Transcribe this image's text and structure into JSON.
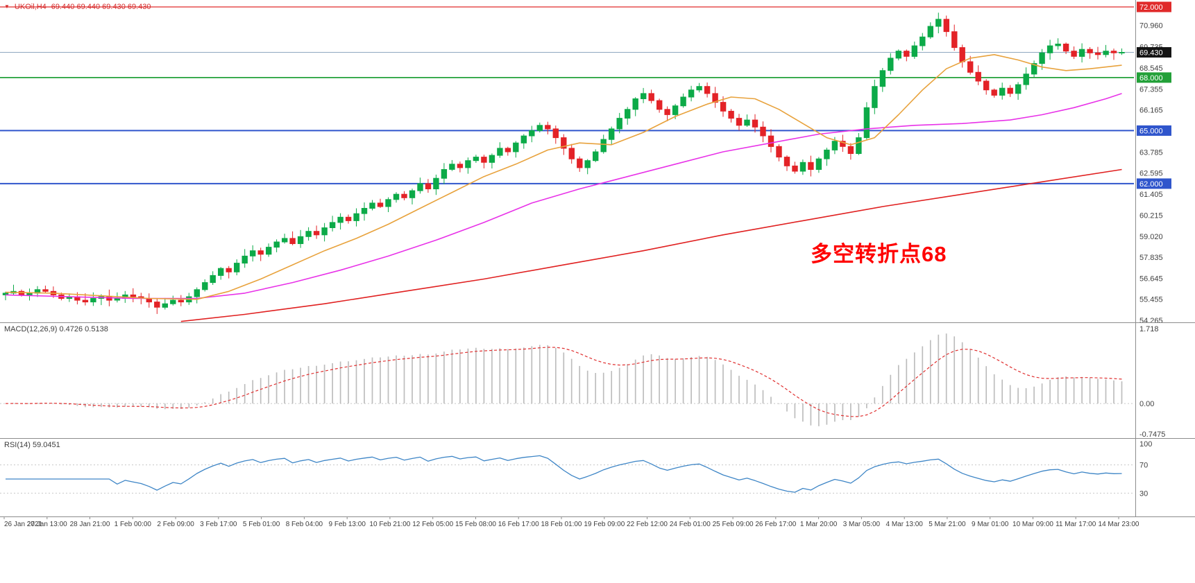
{
  "header": {
    "symbol": "UKOil,H4",
    "ohlc": "69.440 69.440 69.430 69.430"
  },
  "chart_data": {
    "type": "candlestick",
    "symbol": "UKOil",
    "timeframe": "H4",
    "price_axis": {
      "max": 72.0,
      "min": 54.265,
      "ticks": [
        "70.960",
        "69.735",
        "68.545",
        "67.355",
        "66.165",
        "63.785",
        "62.595",
        "61.405",
        "60.215",
        "59.020",
        "57.835",
        "56.645",
        "55.455",
        "54.265"
      ],
      "badges": [
        {
          "label": "72.000",
          "color": "#e02a2a",
          "name": "resistance-72-badge"
        },
        {
          "label": "69.430",
          "color": "#141414",
          "name": "current-price-badge"
        },
        {
          "label": "68.000",
          "color": "#22a038",
          "name": "level-68-badge"
        },
        {
          "label": "65.000",
          "color": "#2f55cc",
          "name": "level-65-badge"
        },
        {
          "label": "62.000",
          "color": "#2f55cc",
          "name": "level-62-badge"
        }
      ]
    },
    "hlines": [
      {
        "price": 72.0,
        "color": "#e02a2a",
        "width": 1.3,
        "name": "resistance-line-72"
      },
      {
        "price": 69.43,
        "color": "#8fa8c0",
        "width": 1,
        "name": "current-price-line"
      },
      {
        "price": 68.0,
        "color": "#22a038",
        "width": 1.7,
        "name": "support-line-68"
      },
      {
        "price": 65.0,
        "color": "#2f55cc",
        "width": 2,
        "name": "support-line-65"
      },
      {
        "price": 62.0,
        "color": "#2f55cc",
        "width": 2,
        "name": "support-line-62"
      }
    ],
    "candles": {
      "first_open": 55.7,
      "up_color": "#0caa48",
      "down_color": "#e32227",
      "closes": [
        55.8,
        55.9,
        55.7,
        55.8,
        56.0,
        55.9,
        55.7,
        55.5,
        55.6,
        55.4,
        55.3,
        55.5,
        55.6,
        55.4,
        55.5,
        55.7,
        55.6,
        55.5,
        55.3,
        55.0,
        55.2,
        55.4,
        55.3,
        55.6,
        56.0,
        56.4,
        56.8,
        57.2,
        57.0,
        57.5,
        57.9,
        58.2,
        58.0,
        58.4,
        58.7,
        58.9,
        58.6,
        59.0,
        59.3,
        59.1,
        59.5,
        59.8,
        60.1,
        59.9,
        60.3,
        60.6,
        60.9,
        60.7,
        61.1,
        61.4,
        61.2,
        61.6,
        62.0,
        61.7,
        62.3,
        62.8,
        63.1,
        62.9,
        63.3,
        63.5,
        63.2,
        63.6,
        64.0,
        63.8,
        64.3,
        64.7,
        65.0,
        65.3,
        65.1,
        64.6,
        64.0,
        63.4,
        62.9,
        63.3,
        63.8,
        64.5,
        65.1,
        65.7,
        66.2,
        66.8,
        67.1,
        66.7,
        66.2,
        65.9,
        66.4,
        66.9,
        67.3,
        67.5,
        67.1,
        66.6,
        66.1,
        65.7,
        65.3,
        65.6,
        65.2,
        64.7,
        64.1,
        63.5,
        63.0,
        62.7,
        63.2,
        62.8,
        63.4,
        63.9,
        64.4,
        64.1,
        63.7,
        64.6,
        66.3,
        67.5,
        68.4,
        69.1,
        69.5,
        69.2,
        69.8,
        70.3,
        70.9,
        71.3,
        70.6,
        69.7,
        68.9,
        68.3,
        67.8,
        67.3,
        67.0,
        67.4,
        67.1,
        67.6,
        68.2,
        68.8,
        69.4,
        69.8,
        69.9,
        69.5,
        69.2,
        69.6,
        69.4,
        69.3,
        69.5,
        69.4,
        69.43
      ]
    },
    "ma": {
      "orange": {
        "color": "#e8a23c",
        "points": [
          [
            0,
            55.85
          ],
          [
            6,
            55.8
          ],
          [
            12,
            55.65
          ],
          [
            18,
            55.5
          ],
          [
            24,
            55.45
          ],
          [
            28,
            55.9
          ],
          [
            32,
            56.6
          ],
          [
            36,
            57.4
          ],
          [
            40,
            58.2
          ],
          [
            44,
            58.9
          ],
          [
            48,
            59.7
          ],
          [
            52,
            60.6
          ],
          [
            56,
            61.5
          ],
          [
            60,
            62.4
          ],
          [
            64,
            63.1
          ],
          [
            68,
            63.9
          ],
          [
            72,
            64.3
          ],
          [
            76,
            64.2
          ],
          [
            80,
            64.9
          ],
          [
            84,
            65.8
          ],
          [
            88,
            66.5
          ],
          [
            91,
            66.9
          ],
          [
            94,
            66.8
          ],
          [
            97,
            66.2
          ],
          [
            100,
            65.4
          ],
          [
            103,
            64.6
          ],
          [
            106,
            64.2
          ],
          [
            109,
            64.6
          ],
          [
            112,
            65.9
          ],
          [
            115,
            67.3
          ],
          [
            118,
            68.5
          ],
          [
            121,
            69.1
          ],
          [
            124,
            69.3
          ],
          [
            127,
            69.0
          ],
          [
            130,
            68.6
          ],
          [
            133,
            68.4
          ],
          [
            136,
            68.5
          ],
          [
            140,
            68.7
          ]
        ]
      },
      "magenta": {
        "color": "#e832e8",
        "points": [
          [
            0,
            55.7
          ],
          [
            8,
            55.6
          ],
          [
            16,
            55.5
          ],
          [
            24,
            55.5
          ],
          [
            30,
            55.8
          ],
          [
            36,
            56.4
          ],
          [
            42,
            57.1
          ],
          [
            48,
            57.9
          ],
          [
            54,
            58.8
          ],
          [
            60,
            59.8
          ],
          [
            66,
            60.9
          ],
          [
            72,
            61.7
          ],
          [
            78,
            62.4
          ],
          [
            84,
            63.1
          ],
          [
            90,
            63.8
          ],
          [
            96,
            64.3
          ],
          [
            102,
            64.8
          ],
          [
            108,
            65.1
          ],
          [
            114,
            65.3
          ],
          [
            120,
            65.4
          ],
          [
            126,
            65.6
          ],
          [
            130,
            65.9
          ],
          [
            134,
            66.3
          ],
          [
            138,
            66.8
          ],
          [
            140,
            67.1
          ]
        ]
      },
      "red": {
        "color": "#e02020",
        "points": [
          [
            22,
            54.2
          ],
          [
            30,
            54.6
          ],
          [
            40,
            55.2
          ],
          [
            50,
            55.9
          ],
          [
            60,
            56.6
          ],
          [
            70,
            57.4
          ],
          [
            80,
            58.2
          ],
          [
            90,
            59.1
          ],
          [
            100,
            59.9
          ],
          [
            110,
            60.7
          ],
          [
            120,
            61.4
          ],
          [
            130,
            62.1
          ],
          [
            140,
            62.8
          ]
        ]
      }
    },
    "macd": {
      "label": "MACD(12,26,9) 0.4726 0.5138",
      "fast": 12,
      "slow": 26,
      "signal_period": 9,
      "main_value": 0.4726,
      "signal_value": 0.5138,
      "axis_top": "1.718",
      "axis_zero": "0.00",
      "axis_bottom": "-0.7475",
      "histogram_color": "#bdbdbd",
      "signal_color": "#e03030"
    },
    "rsi": {
      "label": "RSI(14) 59.0451",
      "period": 14,
      "value": 59.0451,
      "levels": [
        70,
        30
      ],
      "axis": [
        "100",
        "70",
        "30"
      ],
      "line_color": "#3d85c6"
    },
    "time_axis": [
      "26 Jan 2021",
      "27 Jan 13:00",
      "28 Jan 21:00",
      "1 Feb 00:00",
      "2 Feb 09:00",
      "3 Feb 17:00",
      "5 Feb 01:00",
      "8 Feb 04:00",
      "9 Feb 13:00",
      "10 Feb 21:00",
      "12 Feb 05:00",
      "15 Feb 08:00",
      "16 Feb 17:00",
      "18 Feb 01:00",
      "19 Feb 09:00",
      "22 Feb 12:00",
      "24 Feb 01:00",
      "25 Feb 09:00",
      "26 Feb 17:00",
      "1 Mar 20:00",
      "3 Mar 05:00",
      "4 Mar 13:00",
      "5 Mar 21:00",
      "9 Mar 01:00",
      "10 Mar 09:00",
      "11 Mar 17:00",
      "14 Mar 23:00"
    ],
    "annotation": {
      "text": "多空转折点68",
      "color": "#ff0000"
    }
  }
}
